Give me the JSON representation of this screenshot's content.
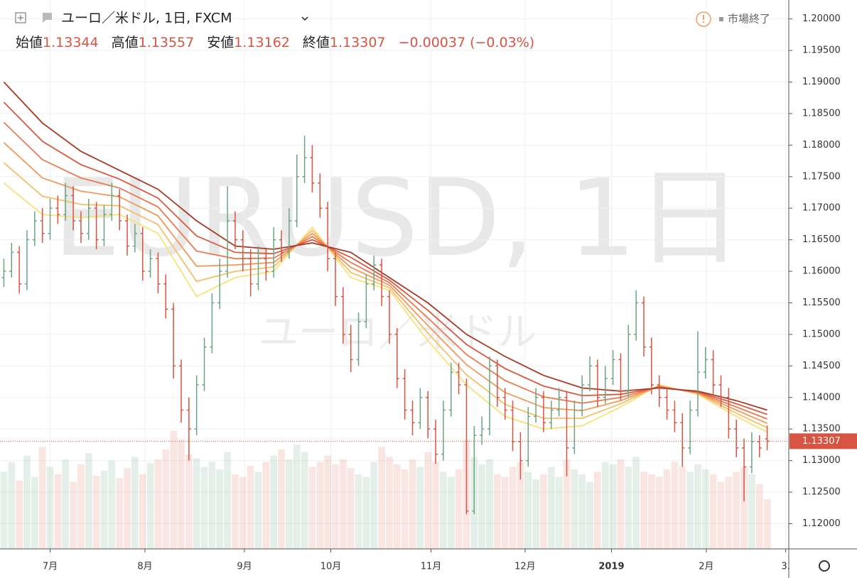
{
  "chart_data": {
    "type": "ohlc",
    "title": "ユーロ／米ドル, 1日, FXCM",
    "header": {
      "open_label": "始値",
      "open": 1.13344,
      "high_label": "高値",
      "high": 1.13557,
      "low_label": "安値",
      "low": 1.13162,
      "close_label": "終値",
      "close": 1.13307,
      "change": "−0.00037 (−0.03%)"
    },
    "status": "市場終了",
    "watermark": "EURUSD, 1日",
    "watermark_sub": "ユーロ／米ドル",
    "xlim": [
      -0.5,
      101.8
    ],
    "xticks": [
      {
        "value": 6,
        "label": "7月"
      },
      {
        "value": 18.3,
        "label": "8月"
      },
      {
        "value": 31.2,
        "label": "9月"
      },
      {
        "value": 42.4,
        "label": "10月"
      },
      {
        "value": 55.4,
        "label": "11月"
      },
      {
        "value": 67.6,
        "label": "12月"
      },
      {
        "value": 78.8,
        "label": "2019"
      },
      {
        "value": 91.1,
        "label": "2月"
      },
      {
        "value": 101.4,
        "label": "3."
      }
    ],
    "ylim": [
      1.116,
      1.203
    ],
    "yticks": [
      {
        "value": 1.12,
        "label": "1.12000"
      },
      {
        "value": 1.125,
        "label": "1.12500"
      },
      {
        "value": 1.13,
        "label": "1.13000"
      },
      {
        "value": 1.135,
        "label": "1.13500"
      },
      {
        "value": 1.14,
        "label": "1.14000"
      },
      {
        "value": 1.145,
        "label": "1.14500"
      },
      {
        "value": 1.15,
        "label": "1.15000"
      },
      {
        "value": 1.155,
        "label": "1.15500"
      },
      {
        "value": 1.16,
        "label": "1.16000"
      },
      {
        "value": 1.165,
        "label": "1.16500"
      },
      {
        "value": 1.17,
        "label": "1.17000"
      },
      {
        "value": 1.175,
        "label": "1.17500"
      },
      {
        "value": 1.18,
        "label": "1.18000"
      },
      {
        "value": 1.185,
        "label": "1.18500"
      },
      {
        "value": 1.19,
        "label": "1.19000"
      },
      {
        "value": 1.195,
        "label": "1.19500"
      },
      {
        "value": 1.2,
        "label": "1.20000"
      }
    ],
    "grid": true,
    "up_color": "#6ba583",
    "down_color": "#d75442",
    "open": [
      1.159,
      1.16,
      1.163,
      1.158,
      1.165,
      1.168,
      1.166,
      1.17,
      1.169,
      1.172,
      1.168,
      1.166,
      1.17,
      1.165,
      1.169,
      1.172,
      1.168,
      1.164,
      1.166,
      1.16,
      1.162,
      1.158,
      1.154,
      1.145,
      1.138,
      1.135,
      1.142,
      1.148,
      1.155,
      1.16,
      1.168,
      1.165,
      1.162,
      1.158,
      1.162,
      1.16,
      1.165,
      1.163,
      1.168,
      1.175,
      1.178,
      1.174,
      1.17,
      1.162,
      1.156,
      1.15,
      1.146,
      1.152,
      1.158,
      1.161,
      1.156,
      1.15,
      1.143,
      1.138,
      1.136,
      1.14,
      1.135,
      1.131,
      1.138,
      1.144,
      1.142,
      1.122,
      1.134,
      1.135,
      1.145,
      1.14,
      1.138,
      1.133,
      1.13,
      1.137,
      1.14,
      1.136,
      1.138,
      1.14,
      1.132,
      1.138,
      1.142,
      1.145,
      1.14,
      1.143,
      1.146,
      1.141,
      1.15,
      1.155,
      1.148,
      1.142,
      1.14,
      1.138,
      1.136,
      1.132,
      1.138,
      1.144,
      1.146,
      1.142,
      1.14,
      1.135,
      1.132,
      1.129,
      1.133,
      1.13344
    ],
    "high": [
      1.162,
      1.1645,
      1.164,
      1.1665,
      1.1695,
      1.17,
      1.1715,
      1.172,
      1.174,
      1.1735,
      1.1695,
      1.1715,
      1.171,
      1.1705,
      1.174,
      1.173,
      1.169,
      1.1675,
      1.167,
      1.1635,
      1.163,
      1.1595,
      1.155,
      1.146,
      1.14,
      1.1435,
      1.1495,
      1.1565,
      1.162,
      1.1735,
      1.1695,
      1.1665,
      1.1635,
      1.164,
      1.1635,
      1.167,
      1.1665,
      1.17,
      1.1785,
      1.1815,
      1.18,
      1.1755,
      1.171,
      1.163,
      1.1575,
      1.1515,
      1.1535,
      1.1595,
      1.1625,
      1.162,
      1.157,
      1.151,
      1.1445,
      1.1395,
      1.1415,
      1.141,
      1.1365,
      1.1395,
      1.1455,
      1.1455,
      1.143,
      1.1355,
      1.137,
      1.1465,
      1.146,
      1.1415,
      1.1395,
      1.1345,
      1.1385,
      1.1415,
      1.141,
      1.1395,
      1.1415,
      1.141,
      1.1395,
      1.1435,
      1.1465,
      1.146,
      1.145,
      1.1475,
      1.147,
      1.1515,
      1.157,
      1.156,
      1.1495,
      1.1435,
      1.1415,
      1.1395,
      1.1375,
      1.1395,
      1.1505,
      1.148,
      1.1475,
      1.1435,
      1.1415,
      1.1365,
      1.1335,
      1.1345,
      1.134,
      1.13557
    ],
    "low": [
      1.1575,
      1.159,
      1.1565,
      1.157,
      1.164,
      1.1645,
      1.165,
      1.1675,
      1.168,
      1.1665,
      1.1645,
      1.165,
      1.1635,
      1.164,
      1.168,
      1.1665,
      1.1625,
      1.163,
      1.1585,
      1.159,
      1.1565,
      1.1525,
      1.143,
      1.136,
      1.13,
      1.134,
      1.141,
      1.147,
      1.154,
      1.159,
      1.1635,
      1.16,
      1.156,
      1.157,
      1.1585,
      1.159,
      1.1615,
      1.162,
      1.167,
      1.174,
      1.1725,
      1.1685,
      1.16,
      1.1545,
      1.1485,
      1.144,
      1.145,
      1.151,
      1.157,
      1.1545,
      1.1485,
      1.1415,
      1.1365,
      1.134,
      1.135,
      1.1335,
      1.1295,
      1.13,
      1.137,
      1.1405,
      1.1215,
      1.1215,
      1.1325,
      1.134,
      1.1385,
      1.1365,
      1.1315,
      1.127,
      1.129,
      1.136,
      1.1345,
      1.135,
      1.137,
      1.1275,
      1.131,
      1.137,
      1.141,
      1.1385,
      1.139,
      1.142,
      1.1395,
      1.14,
      1.149,
      1.1465,
      1.1405,
      1.1385,
      1.1365,
      1.1345,
      1.129,
      1.131,
      1.137,
      1.143,
      1.1405,
      1.1385,
      1.1335,
      1.1305,
      1.1235,
      1.128,
      1.1305,
      1.13162
    ],
    "close": [
      1.16,
      1.163,
      1.158,
      1.165,
      1.168,
      1.166,
      1.17,
      1.169,
      1.172,
      1.168,
      1.166,
      1.17,
      1.165,
      1.169,
      1.172,
      1.168,
      1.164,
      1.166,
      1.16,
      1.162,
      1.158,
      1.154,
      1.145,
      1.138,
      1.135,
      1.142,
      1.148,
      1.155,
      1.16,
      1.168,
      1.165,
      1.162,
      1.158,
      1.162,
      1.16,
      1.165,
      1.163,
      1.168,
      1.175,
      1.178,
      1.174,
      1.17,
      1.162,
      1.156,
      1.15,
      1.146,
      1.152,
      1.158,
      1.161,
      1.156,
      1.15,
      1.143,
      1.138,
      1.136,
      1.14,
      1.135,
      1.131,
      1.138,
      1.144,
      1.142,
      1.122,
      1.134,
      1.135,
      1.145,
      1.14,
      1.138,
      1.133,
      1.13,
      1.137,
      1.14,
      1.136,
      1.138,
      1.14,
      1.132,
      1.138,
      1.142,
      1.145,
      1.14,
      1.143,
      1.146,
      1.141,
      1.15,
      1.155,
      1.148,
      1.142,
      1.14,
      1.138,
      1.136,
      1.132,
      1.138,
      1.144,
      1.146,
      1.142,
      1.14,
      1.135,
      1.132,
      1.129,
      1.133,
      1.132,
      1.13307
    ],
    "volume": [
      62,
      70,
      55,
      75,
      58,
      82,
      66,
      60,
      72,
      54,
      68,
      77,
      59,
      63,
      71,
      57,
      65,
      74,
      60,
      69,
      72,
      80,
      95,
      88,
      76,
      73,
      66,
      70,
      64,
      78,
      60,
      58,
      67,
      62,
      70,
      75,
      80,
      72,
      84,
      78,
      66,
      70,
      75,
      68,
      72,
      65,
      60,
      58,
      70,
      82,
      74,
      68,
      64,
      72,
      66,
      78,
      70,
      62,
      58,
      64,
      88,
      74,
      68,
      72,
      60,
      58,
      66,
      70,
      62,
      56,
      60,
      66,
      58,
      72,
      64,
      60,
      54,
      62,
      70,
      68,
      72,
      66,
      74,
      62,
      60,
      58,
      64,
      70,
      66,
      62,
      68,
      64,
      60,
      54,
      58,
      62,
      66,
      60,
      52,
      40
    ],
    "volume_lim": [
      0,
      100
    ],
    "ma_x": [
      0,
      5,
      10,
      15,
      20,
      25,
      30,
      35,
      40,
      45,
      50,
      55,
      60,
      65,
      70,
      75,
      80,
      85,
      90,
      95,
      99
    ],
    "ma": [
      {
        "color": "#f7e27a",
        "values": [
          1.174,
          1.169,
          1.1685,
          1.169,
          1.166,
          1.156,
          1.159,
          1.16,
          1.167,
          1.159,
          1.157,
          1.149,
          1.142,
          1.137,
          1.135,
          1.1355,
          1.1385,
          1.142,
          1.1405,
          1.137,
          1.1345
        ]
      },
      {
        "color": "#f5bf6a",
        "values": [
          1.1772,
          1.1719,
          1.1706,
          1.1704,
          1.1674,
          1.1584,
          1.16,
          1.1607,
          1.1665,
          1.1598,
          1.1574,
          1.1502,
          1.1436,
          1.1389,
          1.1367,
          1.1367,
          1.139,
          1.1419,
          1.1406,
          1.1375,
          1.1352
        ]
      },
      {
        "color": "#f19a5c",
        "values": [
          1.1804,
          1.1748,
          1.1727,
          1.1718,
          1.1688,
          1.1608,
          1.161,
          1.1614,
          1.166,
          1.1606,
          1.1578,
          1.1514,
          1.1452,
          1.1408,
          1.1384,
          1.1379,
          1.1395,
          1.1418,
          1.1407,
          1.138,
          1.1359
        ]
      },
      {
        "color": "#ea7a52",
        "values": [
          1.1836,
          1.1777,
          1.1748,
          1.1732,
          1.1702,
          1.1632,
          1.162,
          1.1621,
          1.1655,
          1.1614,
          1.1582,
          1.1526,
          1.1468,
          1.1427,
          1.1401,
          1.1391,
          1.14,
          1.1417,
          1.1408,
          1.1385,
          1.1366
        ]
      },
      {
        "color": "#d85a3e",
        "values": [
          1.1868,
          1.1806,
          1.1769,
          1.1746,
          1.1716,
          1.1656,
          1.163,
          1.1628,
          1.165,
          1.1622,
          1.1586,
          1.1538,
          1.1484,
          1.1446,
          1.1418,
          1.1403,
          1.1405,
          1.1416,
          1.1409,
          1.139,
          1.1373
        ]
      },
      {
        "color": "#a63a23",
        "values": [
          1.19,
          1.1835,
          1.179,
          1.176,
          1.173,
          1.168,
          1.164,
          1.1635,
          1.1645,
          1.163,
          1.159,
          1.155,
          1.15,
          1.1465,
          1.1435,
          1.1415,
          1.141,
          1.1415,
          1.141,
          1.1395,
          1.138
        ]
      }
    ]
  }
}
